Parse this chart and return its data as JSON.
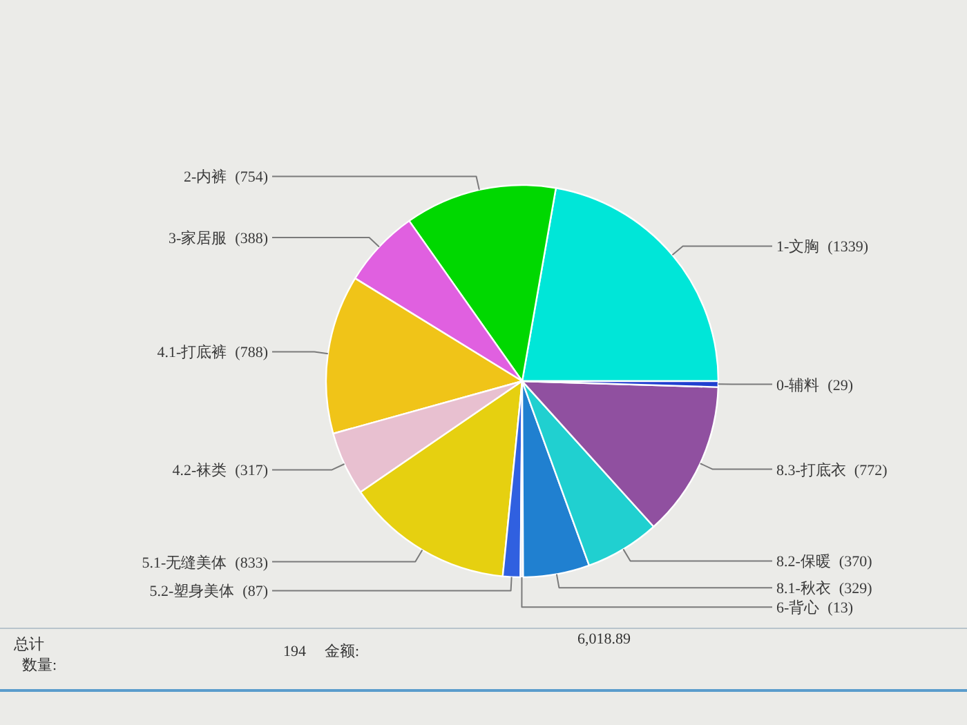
{
  "chart_data": {
    "type": "pie",
    "categories": [
      "1-文胸",
      "2-内裤",
      "3-家居服",
      "4.1-打底裤",
      "4.2-袜类",
      "5.1-无缝美体",
      "5.2-塑身美体",
      "6-背心",
      "8.1-秋衣",
      "8.2-保暖",
      "8.3-打底衣",
      "0-辅料"
    ],
    "values": [
      1339,
      754,
      388,
      788,
      317,
      833,
      87,
      13,
      329,
      370,
      772,
      29
    ],
    "value_labels": [
      "(1339)",
      "(754)",
      "(388)",
      "(788)",
      "(317)",
      "(833)",
      "(87)",
      "(13)",
      "(329)",
      "(370)",
      "(772)",
      "(29)"
    ],
    "colors": [
      "#00e6d8",
      "#00d800",
      "#e060e0",
      "#f0c418",
      "#e8c0d0",
      "#e6d010",
      "#3060e0",
      "#e4e4ee",
      "#2080d0",
      "#20d0d0",
      "#9050a0",
      "#2040d0"
    ],
    "annotations": [
      "总计",
      "数量:",
      "194",
      "金额:",
      "6,018.89"
    ]
  }
}
